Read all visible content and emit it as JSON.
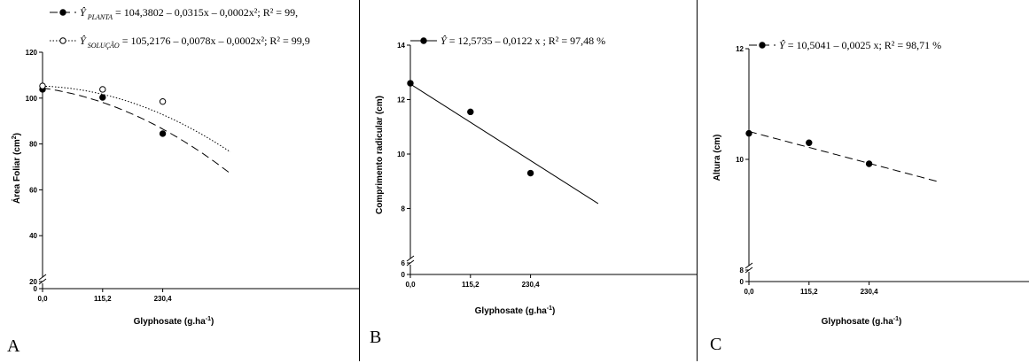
{
  "chart_data": [
    {
      "panel": "A",
      "type": "scatter",
      "xlabel": "Glyphosate (g.ha",
      "xlabel_sup": "-1",
      "xlabel_end": ")",
      "ylabel": "Área Foliar (cm",
      "ylabel_sup": "2",
      "ylabel_end": ")",
      "xticks": [
        "0,0",
        "115,2",
        "230,4"
      ],
      "yticks": [
        {
          "label": "0",
          "value": 0
        },
        {
          "label": "20",
          "value": 20
        },
        {
          "label": "40",
          "value": 40
        },
        {
          "label": "60",
          "value": 60
        },
        {
          "label": "80",
          "value": 80
        },
        {
          "label": "100",
          "value": 100
        },
        {
          "label": "120",
          "value": 120
        }
      ],
      "ylim": [
        0,
        120
      ],
      "xlim": [
        0,
        345.6
      ],
      "axis_break": true,
      "series": [
        {
          "legend_prefix": "Ŷ",
          "legend_sub": "PLANTA",
          "legend_text": "= 104,3802 – 0,0315x – 0,0002x²; R² = 99,",
          "marker": "filled",
          "line": "dashed",
          "x": [
            0,
            115.2,
            230.4
          ],
          "y": [
            103.8,
            100.3,
            84.5
          ],
          "coef": [
            104.3802,
            -0.0315,
            -0.0002
          ]
        },
        {
          "legend_prefix": "Ŷ",
          "legend_sub": "SOLUÇÃO",
          "legend_text": "= 105,2176 – 0,0078x – 0,0002x²; R² = 99,9",
          "marker": "open",
          "line": "dotted",
          "x": [
            0,
            115.2,
            230.4
          ],
          "y": [
            105.3,
            103.8,
            98.5
          ],
          "coef": [
            105.2176,
            -0.0078,
            -0.0002
          ]
        }
      ],
      "letter": "A"
    },
    {
      "panel": "B",
      "type": "scatter",
      "xlabel": "Glyphosate (g.ha",
      "xlabel_sup": "-1",
      "xlabel_end": ")",
      "ylabel": "Comprimento radicular (cm)",
      "ylabel_sup": "",
      "ylabel_end": "",
      "xticks": [
        "0,0",
        "115,2",
        "230,4"
      ],
      "yticks": [
        {
          "label": "0",
          "value": 0
        },
        {
          "label": "6",
          "value": 6
        },
        {
          "label": "8",
          "value": 8
        },
        {
          "label": "10",
          "value": 10
        },
        {
          "label": "12",
          "value": 12
        },
        {
          "label": "14",
          "value": 14
        }
      ],
      "ylim": [
        6,
        14
      ],
      "xlim": [
        0,
        345.6
      ],
      "axis_break": true,
      "series": [
        {
          "legend_prefix": "Ŷ",
          "legend_sub": "",
          "legend_text": "= 12,5735 – 0,0122 x ; R² = 97,48 %",
          "marker": "filled",
          "line": "solid",
          "x": [
            0,
            115.2,
            230.4
          ],
          "y": [
            12.6,
            11.55,
            9.3
          ],
          "coef": [
            12.5735,
            -0.0122,
            0
          ]
        }
      ],
      "letter": "B"
    },
    {
      "panel": "C",
      "type": "scatter",
      "xlabel": "Glyphosate (g.ha",
      "xlabel_sup": "-1",
      "xlabel_end": ")",
      "ylabel": "Altura (cm)",
      "ylabel_sup": "",
      "ylabel_end": "",
      "xticks": [
        "0,0",
        "115,2",
        "230,4"
      ],
      "yticks": [
        {
          "label": "0",
          "value": 0
        },
        {
          "label": "8",
          "value": 8
        },
        {
          "label": "10",
          "value": 10
        },
        {
          "label": "12",
          "value": 12
        }
      ],
      "ylim": [
        8,
        12
      ],
      "xlim": [
        0,
        345.6
      ],
      "axis_break": true,
      "series": [
        {
          "legend_prefix": "Ŷ",
          "legend_sub": "",
          "legend_text": "= 10,5041 – 0,0025 x; R² = 98,71 %",
          "marker": "filled",
          "line": "dashed",
          "x": [
            0,
            115.2,
            230.4
          ],
          "y": [
            10.47,
            10.3,
            9.92
          ],
          "coef": [
            10.5041,
            -0.0025,
            0
          ]
        }
      ],
      "letter": "C"
    }
  ]
}
